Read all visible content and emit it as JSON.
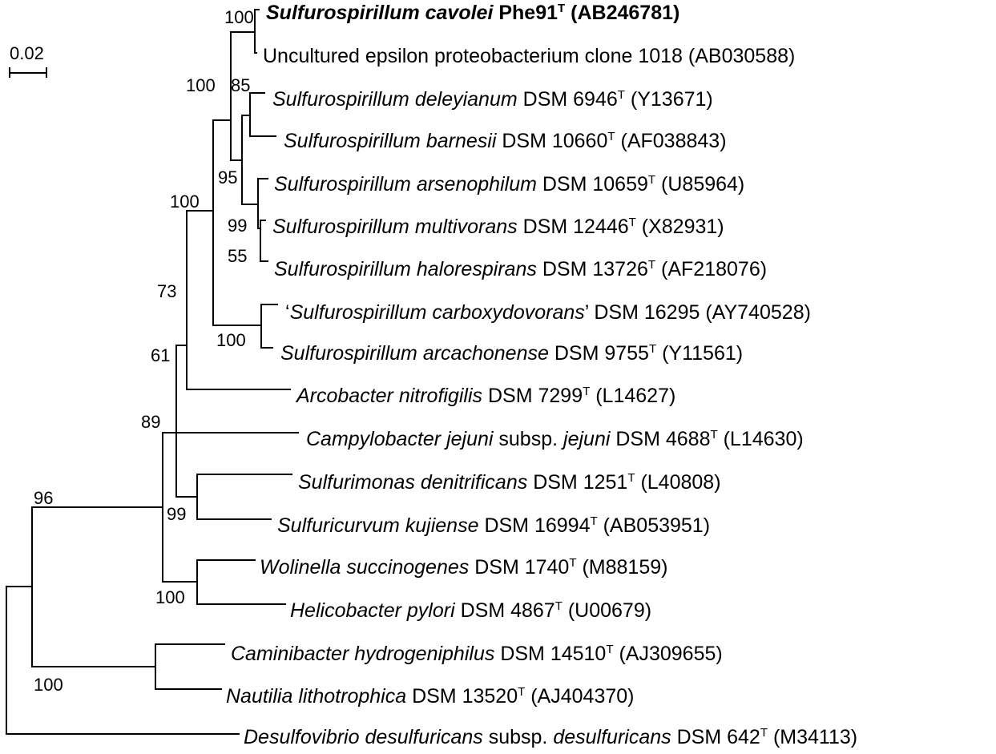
{
  "scale_bar": {
    "label": "0.02"
  },
  "taxa": [
    {
      "genus_species": "Sulfurospirillum cavolei",
      "strain": "Phe91",
      "type_strain": true,
      "accession": "(AB246781)",
      "bold": true
    },
    {
      "genus_species": "",
      "strain": "Uncultured epsilon proteobacterium clone 1018",
      "type_strain": false,
      "accession": "(AB030588)"
    },
    {
      "genus_species": "Sulfurospirillum deleyianum",
      "strain": "DSM 6946",
      "type_strain": true,
      "accession": "(Y13671)"
    },
    {
      "genus_species": "Sulfurospirillum barnesii",
      "strain": "DSM 10660",
      "type_strain": true,
      "accession": "(AF038843)"
    },
    {
      "genus_species": "Sulfurospirillum arsenophilum",
      "strain": "DSM 10659",
      "type_strain": true,
      "accession": "(U85964)"
    },
    {
      "genus_species": "Sulfurospirillum multivorans",
      "strain": "DSM 12446",
      "type_strain": true,
      "accession": "(X82931)"
    },
    {
      "genus_species": "Sulfurospirillum halorespirans",
      "strain": "DSM 13726",
      "type_strain": true,
      "accession": "(AF218076)"
    },
    {
      "prefix": "‘",
      "genus_species": "Sulfurospirillum carboxydovorans",
      "suffix": "’",
      "strain": "DSM 16295",
      "type_strain": false,
      "accession": "(AY740528)"
    },
    {
      "genus_species": "Sulfurospirillum arcachonense",
      "strain": "DSM 9755",
      "type_strain": true,
      "accession": "(Y11561)"
    },
    {
      "genus_species": "Arcobacter nitrofigilis",
      "strain": "DSM 7299",
      "type_strain": true,
      "accession": "(L14627)"
    },
    {
      "genus_species": "Campylobacter jejuni",
      "subsp_word": "subsp.",
      "subsp_name": "jejuni",
      "strain": "DSM 4688",
      "type_strain": true,
      "accession": "(L14630)"
    },
    {
      "genus_species": "Sulfurimonas denitrificans",
      "strain": "DSM 1251",
      "type_strain": true,
      "accession": "(L40808)"
    },
    {
      "genus_species": "Sulfuricurvum kujiense",
      "strain": "DSM 16994",
      "type_strain": true,
      "accession": "(AB053951)"
    },
    {
      "genus_species": "Wolinella succinogenes",
      "strain": "DSM 1740",
      "type_strain": true,
      "accession": "(M88159)"
    },
    {
      "genus_species": "Helicobacter pylori",
      "strain": "DSM 4867",
      "type_strain": true,
      "accession": "(U00679)"
    },
    {
      "genus_species": "Caminibacter hydrogeniphilus",
      "strain": "DSM 14510",
      "type_strain": true,
      "accession": "(AJ309655)"
    },
    {
      "genus_species": "Nautilia lithotrophica",
      "strain": "DSM 13520",
      "type_strain": true,
      "accession": "(AJ404370)"
    },
    {
      "genus_species": "Desulfovibrio desulfuricans",
      "subsp_word": "subsp.",
      "subsp_name": "desulfuricans",
      "strain": "DSM 642",
      "type_strain": true,
      "accession": "(M34113)"
    }
  ],
  "type_strain_mark": "T",
  "bootstrap_values": [
    "100",
    "100",
    "85",
    "95",
    "99",
    "55",
    "100",
    "100",
    "73",
    "61",
    "89",
    "99",
    "100",
    "96",
    "100"
  ]
}
